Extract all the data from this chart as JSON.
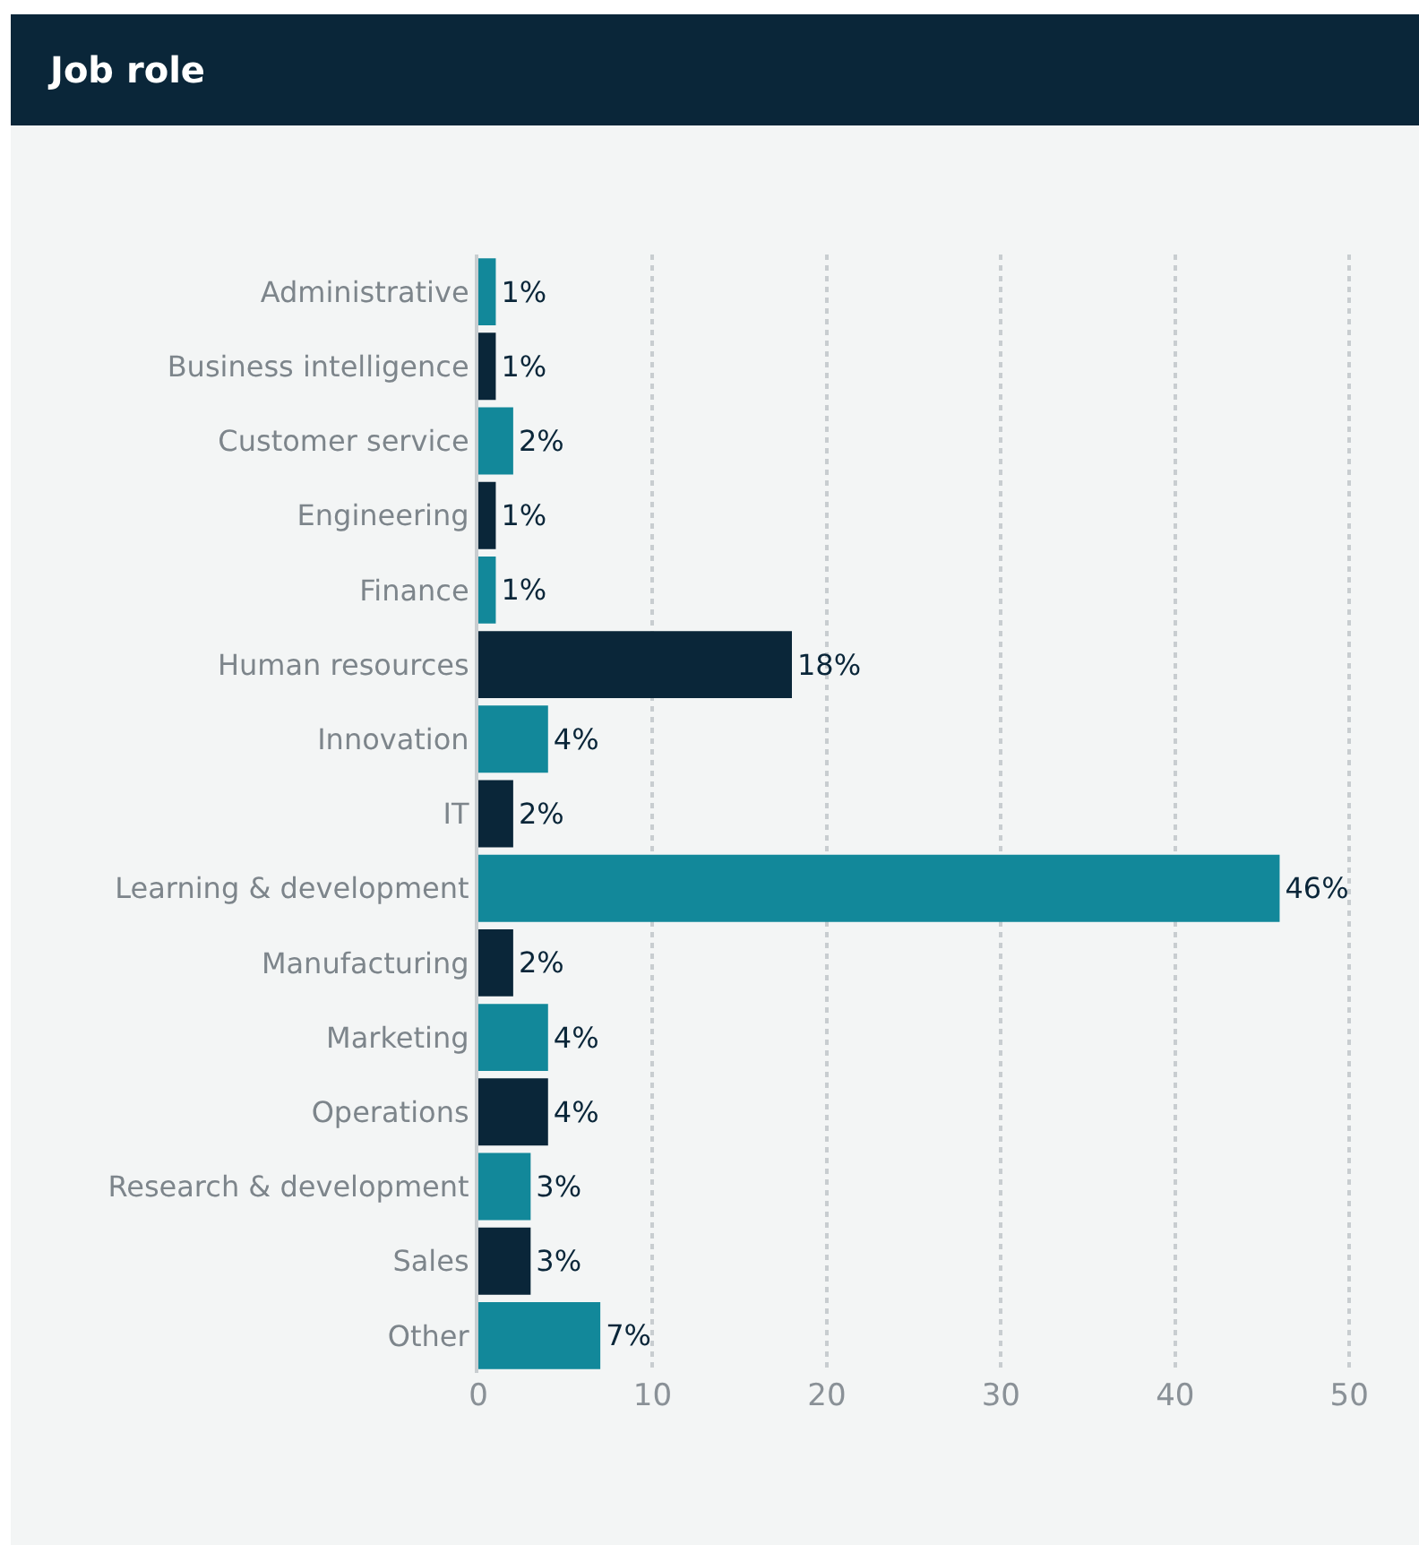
{
  "chart_data": {
    "type": "bar",
    "title": "Job role",
    "orientation": "horizontal",
    "categories": [
      "Administrative",
      "Business intelligence",
      "Customer service",
      "Engineering",
      "Finance",
      "Human resources",
      "Innovation",
      "IT",
      "Learning & development",
      "Manufacturing",
      "Marketing",
      "Operations",
      "Research & development",
      "Sales",
      "Other"
    ],
    "values": [
      1,
      1,
      2,
      1,
      1,
      18,
      4,
      2,
      46,
      2,
      4,
      4,
      3,
      3,
      7
    ],
    "value_labels": [
      "1%",
      "1%",
      "2%",
      "1%",
      "1%",
      "18%",
      "4%",
      "2%",
      "46%",
      "2%",
      "4%",
      "4%",
      "3%",
      "3%",
      "7%"
    ],
    "colors": [
      "#12889a",
      "#0a2639",
      "#12889a",
      "#0a2639",
      "#12889a",
      "#0a2639",
      "#12889a",
      "#0a2639",
      "#12889a",
      "#0a2639",
      "#12889a",
      "#0a2639",
      "#12889a",
      "#0a2639",
      "#12889a"
    ],
    "xlim": [
      0,
      54
    ],
    "xticks": [
      0,
      10,
      20,
      30,
      40,
      50
    ],
    "grid": "x"
  }
}
